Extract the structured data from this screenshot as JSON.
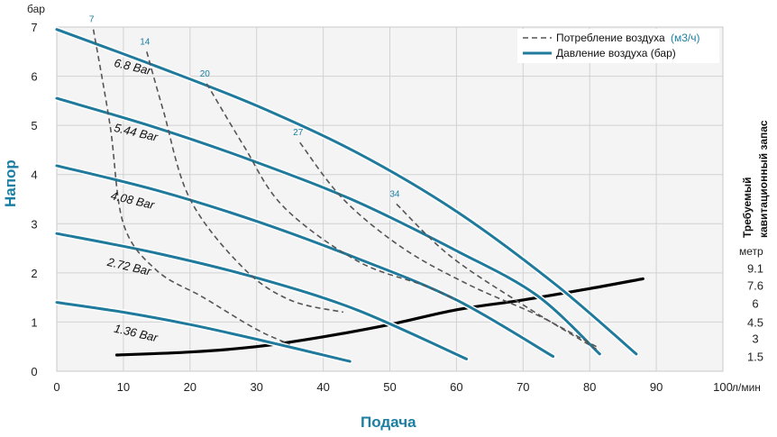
{
  "chart_data": {
    "type": "line",
    "x_axis": {
      "title": "Подача",
      "unit": "л/мин",
      "range": [
        0,
        100
      ],
      "ticks": [
        "0",
        "10",
        "20",
        "30",
        "40",
        "50",
        "60",
        "70",
        "80",
        "90",
        "100"
      ]
    },
    "y_axis": {
      "title": "Напор",
      "unit": "бар",
      "range": [
        0,
        7
      ],
      "ticks": [
        "0",
        "1",
        "2",
        "3",
        "4",
        "5",
        "6",
        "7"
      ]
    },
    "y2_axis": {
      "title_line1": "Требуемый",
      "title_line2": "кавитационный запас",
      "unit": "метр",
      "ticks": [
        {
          "label": "1.5",
          "y": 0.3
        },
        {
          "label": "3",
          "y": 0.67
        },
        {
          "label": "4.5",
          "y": 1.0
        },
        {
          "label": "6",
          "y": 1.38
        },
        {
          "label": "7.6",
          "y": 1.75
        },
        {
          "label": "9.1",
          "y": 2.1
        }
      ]
    },
    "legend": {
      "air_consumption": "Потребление воздуха",
      "air_consumption_unit": "(м3/ч)",
      "air_pressure": "Давление воздуха (бар)"
    },
    "pressure_series": [
      {
        "name": "6.8 Bar",
        "label_at": [
          8.5,
          6.2
        ],
        "points": [
          [
            0,
            6.95
          ],
          [
            15,
            6.2
          ],
          [
            30,
            5.4
          ],
          [
            45,
            4.45
          ],
          [
            60,
            3.25
          ],
          [
            75,
            1.75
          ],
          [
            87,
            0.35
          ]
        ]
      },
      {
        "name": "5.44 Bar",
        "label_at": [
          8.5,
          4.88
        ],
        "points": [
          [
            0,
            5.55
          ],
          [
            15,
            4.95
          ],
          [
            30,
            4.25
          ],
          [
            45,
            3.45
          ],
          [
            60,
            2.45
          ],
          [
            72,
            1.55
          ],
          [
            81.5,
            0.35
          ]
        ]
      },
      {
        "name": "4.08 Bar",
        "label_at": [
          8,
          3.5
        ],
        "points": [
          [
            0,
            4.18
          ],
          [
            15,
            3.68
          ],
          [
            30,
            3.05
          ],
          [
            45,
            2.3
          ],
          [
            60,
            1.45
          ],
          [
            74.5,
            0.3
          ]
        ]
      },
      {
        "name": "2.72 Bar",
        "label_at": [
          7.5,
          2.15
        ],
        "points": [
          [
            0,
            2.8
          ],
          [
            15,
            2.4
          ],
          [
            30,
            1.9
          ],
          [
            45,
            1.25
          ],
          [
            61.5,
            0.25
          ]
        ]
      },
      {
        "name": "1.36 Bar",
        "label_at": [
          8.5,
          0.8
        ],
        "points": [
          [
            0,
            1.4
          ],
          [
            10,
            1.2
          ],
          [
            20,
            0.95
          ],
          [
            30,
            0.65
          ],
          [
            44,
            0.2
          ]
        ]
      }
    ],
    "air_consumption_series": [
      {
        "name": "7",
        "points": [
          [
            5.5,
            6.95
          ],
          [
            8,
            5.0
          ],
          [
            10,
            3.0
          ],
          [
            15,
            2.05
          ],
          [
            22,
            1.5
          ],
          [
            30,
            0.85
          ],
          [
            35,
            0.55
          ]
        ]
      },
      {
        "name": "14",
        "points": [
          [
            13.5,
            6.5
          ],
          [
            16,
            5.3
          ],
          [
            20,
            3.5
          ],
          [
            28,
            2.1
          ],
          [
            35,
            1.45
          ],
          [
            43,
            1.2
          ]
        ]
      },
      {
        "name": "20",
        "points": [
          [
            22.5,
            5.85
          ],
          [
            28,
            4.6
          ],
          [
            34,
            3.35
          ],
          [
            45,
            2.25
          ],
          [
            55,
            1.75
          ],
          [
            60,
            1.45
          ]
        ]
      },
      {
        "name": "27",
        "points": [
          [
            36.5,
            4.65
          ],
          [
            43,
            3.5
          ],
          [
            52,
            2.5
          ],
          [
            62,
            1.75
          ],
          [
            72,
            1.15
          ],
          [
            81,
            0.5
          ]
        ]
      },
      {
        "name": "34",
        "points": [
          [
            51,
            3.4
          ],
          [
            59,
            2.35
          ],
          [
            70,
            1.35
          ],
          [
            81,
            0.45
          ]
        ]
      }
    ],
    "npshr_series": {
      "name": "Требуемый кавитационный запас",
      "points": [
        [
          9,
          0.33
        ],
        [
          20,
          0.39
        ],
        [
          30,
          0.5
        ],
        [
          40,
          0.7
        ],
        [
          50,
          0.95
        ],
        [
          60,
          1.25
        ],
        [
          70,
          1.45
        ],
        [
          80,
          1.68
        ],
        [
          88,
          1.88
        ]
      ]
    }
  }
}
